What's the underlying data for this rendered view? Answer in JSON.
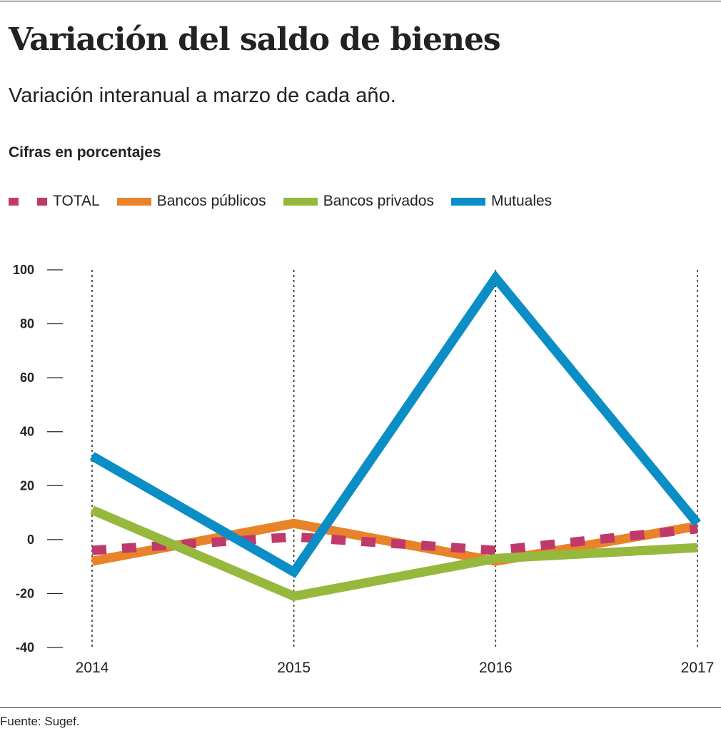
{
  "title": "Variación del saldo de bienes",
  "subtitle": "Variación  interanual a marzo de cada año.",
  "units_label": "Cifras en porcentajes",
  "source": "Fuente: Sugef.",
  "chart_data": {
    "type": "line",
    "categories": [
      "2014",
      "2015",
      "2016",
      "2017"
    ],
    "ylim": [
      -40,
      100
    ],
    "yticks": [
      100,
      80,
      60,
      40,
      20,
      0,
      -20,
      -40
    ],
    "ytick_labels": [
      "100",
      "80",
      "60",
      "40",
      "20",
      "0",
      "-20",
      "-40"
    ],
    "grid": "vertical dotted lines at each year",
    "legend": "top-left",
    "series": [
      {
        "name": "TOTAL",
        "color": "#c0396b",
        "style": "dashed",
        "values": [
          -4,
          1,
          -4,
          4
        ]
      },
      {
        "name": "Bancos públicos",
        "color": "#e8832a",
        "style": "solid",
        "values": [
          -8,
          6,
          -8,
          5
        ]
      },
      {
        "name": "Bancos privados",
        "color": "#96b93d",
        "style": "solid",
        "values": [
          11,
          -21,
          -7,
          -3
        ]
      },
      {
        "name": "Mutuales",
        "color": "#0a8ec5",
        "style": "solid",
        "values": [
          31,
          -12,
          97,
          6
        ]
      }
    ]
  }
}
